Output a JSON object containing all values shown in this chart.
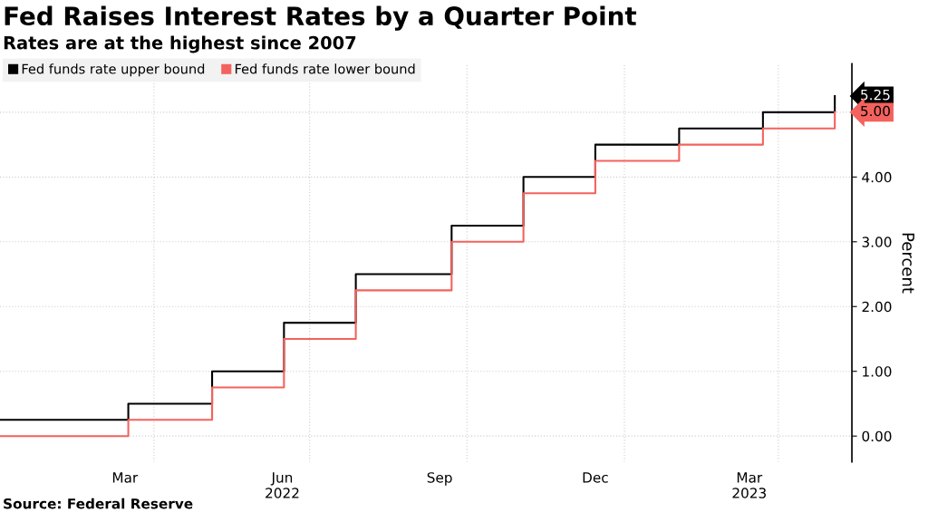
{
  "chart_data": {
    "type": "step",
    "title": "Fed Raises Interest Rates by a Quarter Point",
    "subtitle": "Rates are at the highest since 2007",
    "ylabel": "Percent",
    "annotations": [
      "Source: Federal Reserve"
    ],
    "x": [
      "2022-01-01",
      "2022-03-17",
      "2022-05-05",
      "2022-06-16",
      "2022-07-28",
      "2022-09-22",
      "2022-11-03",
      "2022-12-15",
      "2023-02-02",
      "2023-03-23",
      "2023-05-04"
    ],
    "series": [
      {
        "name": "Fed funds rate upper bound",
        "color": "#000000",
        "values": [
          0.25,
          0.5,
          1,
          1.75,
          2.5,
          3.25,
          4,
          4.5,
          4.75,
          5,
          5.25
        ],
        "value_labels": [
          null,
          null,
          null,
          null,
          null,
          null,
          null,
          null,
          null,
          null,
          "5.25"
        ]
      },
      {
        "name": "Fed funds rate lower bound",
        "color": "#f4625d",
        "values": [
          0,
          0.25,
          0.75,
          1.5,
          2.25,
          3,
          3.75,
          4.25,
          4.5,
          4.75,
          5
        ],
        "value_labels": [
          null,
          null,
          null,
          null,
          null,
          null,
          null,
          null,
          null,
          null,
          "5.00"
        ]
      }
    ],
    "xlim": [
      "2022-01-01",
      "2023-05-14"
    ],
    "xticks": [
      {
        "value": "2022-03-15",
        "label": "Mar"
      },
      {
        "value": "2022-04-01",
        "label": null
      },
      {
        "value": "2022-06-15",
        "label": "Jun\n2022"
      },
      {
        "value": "2022-07-01",
        "label": null
      },
      {
        "value": "2022-09-15",
        "label": "Sep"
      },
      {
        "value": "2022-10-01",
        "label": null
      },
      {
        "value": "2022-12-15",
        "label": "Dec"
      },
      {
        "value": "2023-01-01",
        "label": null
      },
      {
        "value": "2023-03-15",
        "label": "Mar\n2023"
      },
      {
        "value": "2023-04-01",
        "label": null
      }
    ],
    "ylim": [
      -0.4,
      5.75
    ],
    "yticks": [
      {
        "value": 0,
        "label": "0.00"
      },
      {
        "value": 1,
        "label": "1.00"
      },
      {
        "value": 2,
        "label": "2.00"
      },
      {
        "value": 3,
        "label": "3.00"
      },
      {
        "value": 4,
        "label": "4.00"
      },
      {
        "value": 5,
        "label": null
      }
    ],
    "grid": true,
    "legend": "top left"
  }
}
